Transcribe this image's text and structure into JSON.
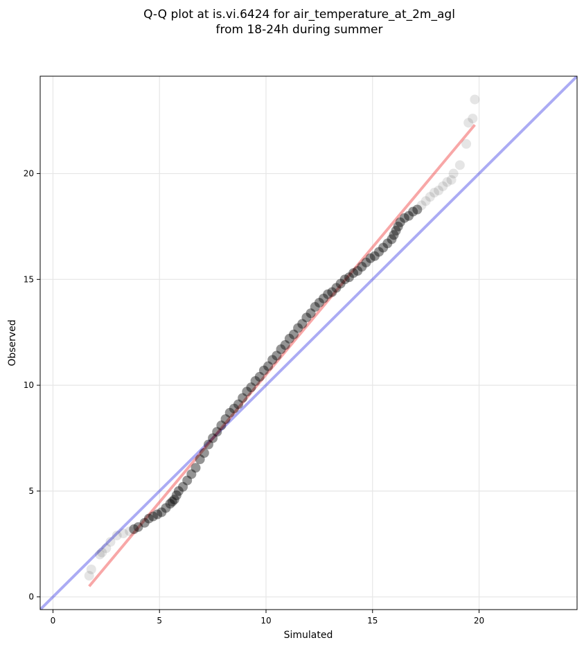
{
  "chart_data": {
    "type": "scatter",
    "title": [
      "Q-Q plot at is.vi.6424 for air_temperature_at_2m_agl",
      "from 18-24h during summer"
    ],
    "xlabel": "Simulated",
    "ylabel": "Observed",
    "xlim": [
      -0.6,
      24.6
    ],
    "ylim": [
      -0.6,
      24.6
    ],
    "xticks": [
      0,
      5,
      10,
      15,
      20
    ],
    "yticks": [
      0,
      5,
      10,
      15,
      20
    ],
    "grid": true,
    "colors": {
      "points": "#000000",
      "identity_line": "#0000dd",
      "fit_line": "#ee2222",
      "grid": "#e6e6e6"
    },
    "identity_line": {
      "x": [
        -0.6,
        24.6
      ],
      "y": [
        -0.6,
        24.6
      ]
    },
    "fit_line": {
      "x": [
        1.7,
        19.8
      ],
      "y": [
        0.5,
        22.3
      ]
    },
    "series": [
      {
        "points": [
          [
            1.7,
            1.0
          ],
          [
            1.8,
            1.3
          ],
          [
            2.2,
            2.0
          ],
          [
            2.3,
            2.1
          ],
          [
            2.5,
            2.3
          ],
          [
            2.7,
            2.6
          ],
          [
            3.0,
            2.9
          ],
          [
            3.3,
            3.0
          ],
          [
            3.6,
            3.1
          ],
          [
            3.8,
            3.2
          ],
          [
            4.0,
            3.3
          ],
          [
            4.3,
            3.5
          ],
          [
            4.5,
            3.7
          ],
          [
            4.7,
            3.8
          ],
          [
            4.9,
            3.9
          ],
          [
            5.1,
            4.0
          ],
          [
            5.3,
            4.2
          ],
          [
            5.5,
            4.4
          ],
          [
            5.6,
            4.5
          ],
          [
            5.7,
            4.6
          ],
          [
            5.8,
            4.8
          ],
          [
            5.9,
            5.0
          ],
          [
            6.1,
            5.2
          ],
          [
            6.3,
            5.5
          ],
          [
            6.5,
            5.8
          ],
          [
            6.7,
            6.1
          ],
          [
            6.9,
            6.5
          ],
          [
            7.1,
            6.8
          ],
          [
            7.3,
            7.2
          ],
          [
            7.5,
            7.5
          ],
          [
            7.7,
            7.8
          ],
          [
            7.9,
            8.1
          ],
          [
            8.1,
            8.4
          ],
          [
            8.3,
            8.7
          ],
          [
            8.5,
            8.9
          ],
          [
            8.7,
            9.1
          ],
          [
            8.9,
            9.4
          ],
          [
            9.1,
            9.7
          ],
          [
            9.3,
            9.9
          ],
          [
            9.5,
            10.2
          ],
          [
            9.7,
            10.4
          ],
          [
            9.9,
            10.7
          ],
          [
            10.1,
            10.9
          ],
          [
            10.3,
            11.2
          ],
          [
            10.5,
            11.4
          ],
          [
            10.7,
            11.7
          ],
          [
            10.9,
            11.9
          ],
          [
            11.1,
            12.2
          ],
          [
            11.3,
            12.4
          ],
          [
            11.5,
            12.7
          ],
          [
            11.7,
            12.9
          ],
          [
            11.9,
            13.2
          ],
          [
            12.1,
            13.4
          ],
          [
            12.3,
            13.7
          ],
          [
            12.5,
            13.9
          ],
          [
            12.7,
            14.1
          ],
          [
            12.9,
            14.3
          ],
          [
            13.1,
            14.4
          ],
          [
            13.3,
            14.6
          ],
          [
            13.5,
            14.8
          ],
          [
            13.7,
            15.0
          ],
          [
            13.9,
            15.1
          ],
          [
            14.1,
            15.3
          ],
          [
            14.3,
            15.4
          ],
          [
            14.5,
            15.6
          ],
          [
            14.7,
            15.8
          ],
          [
            14.9,
            16.0
          ],
          [
            15.1,
            16.1
          ],
          [
            15.3,
            16.3
          ],
          [
            15.5,
            16.5
          ],
          [
            15.7,
            16.7
          ],
          [
            15.9,
            16.9
          ],
          [
            16.0,
            17.1
          ],
          [
            16.1,
            17.3
          ],
          [
            16.2,
            17.5
          ],
          [
            16.3,
            17.7
          ],
          [
            16.5,
            17.9
          ],
          [
            16.7,
            18.0
          ],
          [
            16.9,
            18.2
          ],
          [
            17.1,
            18.3
          ],
          [
            17.3,
            18.5
          ],
          [
            17.5,
            18.7
          ],
          [
            17.7,
            18.9
          ],
          [
            17.9,
            19.1
          ],
          [
            18.1,
            19.2
          ],
          [
            18.3,
            19.4
          ],
          [
            18.5,
            19.6
          ],
          [
            18.7,
            19.7
          ],
          [
            18.8,
            20.0
          ],
          [
            19.1,
            20.4
          ],
          [
            19.4,
            21.4
          ],
          [
            19.5,
            22.4
          ],
          [
            19.7,
            22.6
          ],
          [
            19.8,
            23.5
          ]
        ]
      }
    ]
  }
}
